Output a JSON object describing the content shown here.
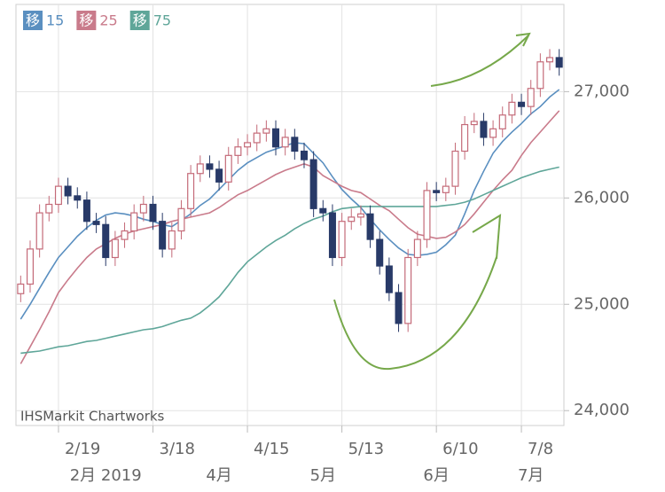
{
  "chart_data": {
    "type": "candlestick",
    "watermark": "IHSMarkit Chartworks",
    "legend_prefix": "移",
    "grid": true,
    "ylim": [
      23860,
      27820
    ],
    "yticks": [
      {
        "value": 24000,
        "label": "24,000"
      },
      {
        "value": 25000,
        "label": "25,000"
      },
      {
        "value": 26000,
        "label": "26,000"
      },
      {
        "value": 27000,
        "label": "27,000"
      }
    ],
    "categories": [
      null,
      null,
      null,
      null,
      "2/19",
      null,
      null,
      null,
      null,
      null,
      null,
      null,
      null,
      null,
      "3/18",
      null,
      null,
      null,
      null,
      null,
      null,
      null,
      null,
      null,
      "4/15",
      null,
      null,
      null,
      null,
      null,
      null,
      null,
      null,
      null,
      "5/13",
      null,
      null,
      null,
      null,
      null,
      null,
      null,
      null,
      null,
      "6/10",
      null,
      null,
      null,
      null,
      null,
      null,
      null,
      null,
      "7/8",
      null,
      null,
      null,
      null
    ],
    "month_labels": [
      null,
      null,
      null,
      null,
      null,
      null,
      null,
      null,
      null,
      "2月 2019",
      null,
      null,
      null,
      null,
      null,
      null,
      null,
      null,
      null,
      null,
      null,
      "4月",
      null,
      null,
      null,
      null,
      null,
      null,
      null,
      null,
      null,
      null,
      "5月",
      null,
      null,
      null,
      null,
      null,
      null,
      null,
      null,
      null,
      null,
      null,
      "6月",
      null,
      null,
      null,
      null,
      null,
      null,
      null,
      null,
      null,
      "7月",
      null,
      null,
      null
    ],
    "up_color": "#c46a78",
    "down_color": "#283a68",
    "open": [
      25100,
      25190,
      25520,
      25860,
      25940,
      26110,
      26020,
      25980,
      25780,
      25750,
      25440,
      25610,
      25690,
      25860,
      25940,
      25780,
      25520,
      25690,
      25900,
      26230,
      26320,
      26270,
      26150,
      26400,
      26480,
      26520,
      26610,
      26650,
      26480,
      26570,
      26440,
      26360,
      25900,
      25860,
      25440,
      25780,
      25820,
      25850,
      25610,
      25360,
      25110,
      24820,
      25440,
      25610,
      26070,
      26050,
      26110,
      26440,
      26690,
      26720,
      26570,
      26650,
      26780,
      26900,
      26860,
      27030,
      27280,
      27320
    ],
    "high": [
      25270,
      25600,
      25940,
      26020,
      26190,
      26190,
      26100,
      26060,
      25860,
      25830,
      25690,
      25770,
      25940,
      26020,
      26020,
      25860,
      25770,
      25980,
      26310,
      26400,
      26400,
      26350,
      26480,
      26560,
      26600,
      26690,
      26730,
      26730,
      26650,
      26650,
      26520,
      26440,
      25980,
      25940,
      25860,
      25900,
      25930,
      25930,
      25690,
      25440,
      25190,
      25520,
      25690,
      26150,
      26150,
      26190,
      26520,
      26770,
      26800,
      26800,
      26730,
      26860,
      26980,
      26980,
      27110,
      27360,
      27400,
      27400
    ],
    "low": [
      25020,
      25110,
      25440,
      25780,
      25860,
      25940,
      25900,
      25700,
      25670,
      25360,
      25360,
      25530,
      25610,
      25780,
      25700,
      25440,
      25440,
      25610,
      25820,
      26150,
      26190,
      26070,
      26070,
      26320,
      26400,
      26440,
      26530,
      26400,
      26400,
      26360,
      26280,
      25820,
      25780,
      25360,
      25360,
      25700,
      25740,
      25530,
      25280,
      25030,
      24740,
      24740,
      25360,
      25530,
      25970,
      25970,
      26030,
      26360,
      26610,
      26490,
      26490,
      26570,
      26700,
      26780,
      26780,
      26950,
      27200,
      27150
    ],
    "close": [
      25190,
      25520,
      25860,
      25940,
      26110,
      26020,
      25980,
      25780,
      25750,
      25440,
      25610,
      25690,
      25860,
      25940,
      25780,
      25520,
      25690,
      25900,
      26230,
      26320,
      26270,
      26150,
      26400,
      26480,
      26520,
      26610,
      26650,
      26480,
      26570,
      26440,
      26360,
      25900,
      25860,
      25440,
      25780,
      25820,
      25850,
      25610,
      25360,
      25110,
      24820,
      25440,
      25610,
      26070,
      26050,
      26110,
      26440,
      26690,
      26720,
      26570,
      26650,
      26780,
      26900,
      26860,
      27030,
      27280,
      27320,
      27230
    ],
    "series": [
      {
        "name": "15",
        "color": "#5a8fc0",
        "values": [
          24860,
          25000,
          25150,
          25300,
          25440,
          25540,
          25640,
          25720,
          25790,
          25840,
          25860,
          25850,
          25830,
          25800,
          25780,
          25750,
          25730,
          25790,
          25850,
          25930,
          25990,
          26080,
          26170,
          26260,
          26330,
          26380,
          26430,
          26460,
          26490,
          26520,
          26510,
          26420,
          26330,
          26200,
          26080,
          25990,
          25910,
          25800,
          25700,
          25610,
          25530,
          25470,
          25460,
          25470,
          25490,
          25560,
          25650,
          25850,
          26070,
          26250,
          26420,
          26530,
          26620,
          26700,
          26790,
          26860,
          26950,
          27020
        ]
      },
      {
        "name": "25",
        "color": "#c97b8b",
        "values": [
          24440,
          24600,
          24760,
          24930,
          25110,
          25230,
          25340,
          25440,
          25520,
          25570,
          25620,
          25660,
          25690,
          25710,
          25730,
          25750,
          25780,
          25800,
          25820,
          25840,
          25860,
          25910,
          25970,
          26030,
          26070,
          26120,
          26170,
          26220,
          26260,
          26290,
          26320,
          26290,
          26210,
          26160,
          26110,
          26070,
          26050,
          25990,
          25930,
          25880,
          25800,
          25720,
          25660,
          25640,
          25620,
          25630,
          25680,
          25750,
          25850,
          25960,
          26070,
          26170,
          26260,
          26400,
          26520,
          26620,
          26720,
          26820
        ]
      },
      {
        "name": "75",
        "color": "#5fa699",
        "values": [
          24540,
          24550,
          24560,
          24580,
          24600,
          24610,
          24630,
          24650,
          24660,
          24680,
          24700,
          24720,
          24740,
          24760,
          24770,
          24790,
          24820,
          24850,
          24870,
          24920,
          24990,
          25070,
          25180,
          25300,
          25400,
          25470,
          25540,
          25600,
          25650,
          25710,
          25760,
          25800,
          25830,
          25870,
          25900,
          25910,
          25920,
          25920,
          25920,
          25920,
          25920,
          25920,
          25920,
          25920,
          25920,
          25930,
          25940,
          25960,
          25990,
          26030,
          26070,
          26110,
          26150,
          26190,
          26220,
          26250,
          26270,
          26290
        ]
      }
    ]
  }
}
